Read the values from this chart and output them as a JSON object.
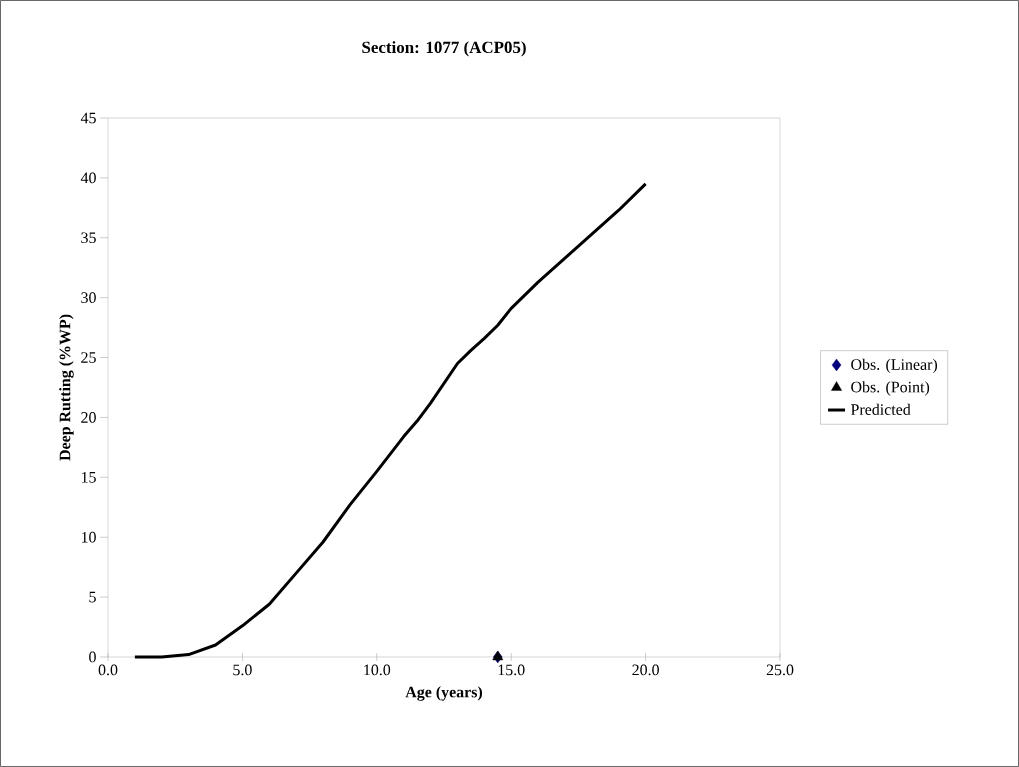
{
  "chart_data": {
    "type": "line",
    "title": "Section: 1077 (ACP05)",
    "xlabel": "Age (years)",
    "ylabel": "Deep Rutting (%WP)",
    "xlim": [
      0,
      25
    ],
    "ylim": [
      0,
      45
    ],
    "xticks": [
      {
        "value": 0,
        "label": "0.0"
      },
      {
        "value": 5,
        "label": "5.0"
      },
      {
        "value": 10,
        "label": "10.0"
      },
      {
        "value": 15,
        "label": "15.0"
      },
      {
        "value": 20,
        "label": "20.0"
      },
      {
        "value": 25,
        "label": "25.0"
      }
    ],
    "yticks": [
      0,
      5,
      10,
      15,
      20,
      25,
      30,
      35,
      40,
      45
    ],
    "grid": false,
    "legend": "right",
    "series": [
      {
        "name": "Obs. (Linear)",
        "type": "scatter",
        "marker": "diamond",
        "color": "#000080",
        "x": [
          14.5
        ],
        "values": [
          0
        ]
      },
      {
        "name": "Obs. (Point)",
        "type": "scatter",
        "marker": "triangle",
        "color": "#000000",
        "x": [
          14.5
        ],
        "values": [
          0
        ]
      },
      {
        "name": "Predicted",
        "marker": "none",
        "line_style": "solid",
        "color": "#000000",
        "x": [
          1,
          2,
          3,
          4,
          5,
          6,
          7,
          8,
          9,
          10,
          11,
          11.5,
          12,
          13,
          13.5,
          14,
          14.5,
          15,
          16,
          17,
          18,
          19,
          20
        ],
        "values": [
          0,
          0,
          0.2,
          1.0,
          2.6,
          4.4,
          7.0,
          9.6,
          12.7,
          15.5,
          18.4,
          19.7,
          21.2,
          24.5,
          25.6,
          26.6,
          27.7,
          29.1,
          31.3,
          33.3,
          35.3,
          37.3,
          39.5
        ]
      }
    ]
  }
}
